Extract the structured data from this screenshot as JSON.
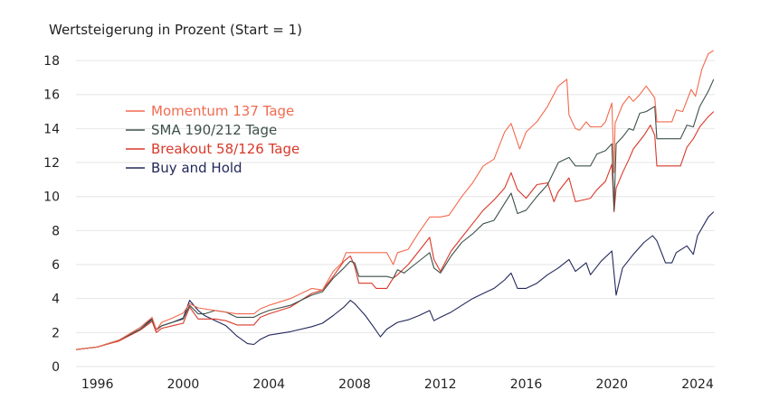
{
  "chart_data": {
    "type": "line",
    "title": "Wertsteigerung in Prozent (Start = 1)",
    "xlabel": "",
    "ylabel": "",
    "xlim": [
      1995.0,
      2024.8
    ],
    "ylim": [
      0,
      18.8
    ],
    "x_ticks": [
      1996,
      2000,
      2004,
      2008,
      2012,
      2016,
      2020,
      2024
    ],
    "x_tick_labels": [
      "1996",
      "2000",
      "2004",
      "2008",
      "2012",
      "2016",
      "2020",
      "2024"
    ],
    "y_ticks": [
      0,
      2,
      4,
      6,
      8,
      10,
      12,
      14,
      16,
      18
    ],
    "y_tick_labels": [
      "0",
      "2",
      "4",
      "6",
      "8",
      "10",
      "12",
      "14",
      "16",
      "18"
    ],
    "grid": "horizontal",
    "legend_position": "upper-left",
    "series": [
      {
        "name": "Momentum 137 Tage",
        "color": "#f26a4f",
        "points": [
          [
            1995.0,
            1.0
          ],
          [
            1996.0,
            1.15
          ],
          [
            1997.0,
            1.55
          ],
          [
            1998.0,
            2.3
          ],
          [
            1998.55,
            2.9
          ],
          [
            1998.75,
            2.15
          ],
          [
            1999.0,
            2.6
          ],
          [
            1999.5,
            2.85
          ],
          [
            2000.0,
            3.15
          ],
          [
            2000.3,
            3.7
          ],
          [
            2000.7,
            3.45
          ],
          [
            2001.5,
            3.3
          ],
          [
            2002.5,
            3.1
          ],
          [
            2003.3,
            3.1
          ],
          [
            2003.6,
            3.4
          ],
          [
            2004.0,
            3.6
          ],
          [
            2005.0,
            4.0
          ],
          [
            2006.0,
            4.6
          ],
          [
            2006.5,
            4.5
          ],
          [
            2007.0,
            5.6
          ],
          [
            2007.4,
            6.1
          ],
          [
            2007.6,
            6.7
          ],
          [
            2008.0,
            6.7
          ],
          [
            2009.5,
            6.7
          ],
          [
            2009.8,
            6.0
          ],
          [
            2010.0,
            6.7
          ],
          [
            2010.5,
            6.9
          ],
          [
            2011.0,
            7.9
          ],
          [
            2011.5,
            8.8
          ],
          [
            2012.0,
            8.8
          ],
          [
            2012.4,
            8.9
          ],
          [
            2013.0,
            10.0
          ],
          [
            2013.5,
            10.8
          ],
          [
            2014.0,
            11.8
          ],
          [
            2014.5,
            12.2
          ],
          [
            2015.0,
            13.8
          ],
          [
            2015.3,
            14.3
          ],
          [
            2015.7,
            12.8
          ],
          [
            2016.0,
            13.8
          ],
          [
            2016.5,
            14.4
          ],
          [
            2017.0,
            15.3
          ],
          [
            2017.5,
            16.5
          ],
          [
            2017.9,
            16.9
          ],
          [
            2018.0,
            14.8
          ],
          [
            2018.3,
            14.0
          ],
          [
            2018.5,
            13.9
          ],
          [
            2018.8,
            14.4
          ],
          [
            2019.0,
            14.1
          ],
          [
            2019.5,
            14.1
          ],
          [
            2019.7,
            14.4
          ],
          [
            2020.0,
            15.5
          ],
          [
            2020.1,
            11.4
          ],
          [
            2020.15,
            14.3
          ],
          [
            2020.5,
            15.4
          ],
          [
            2020.8,
            15.9
          ],
          [
            2021.0,
            15.6
          ],
          [
            2021.3,
            16.0
          ],
          [
            2021.6,
            16.5
          ],
          [
            2022.0,
            15.8
          ],
          [
            2022.1,
            14.4
          ],
          [
            2022.4,
            14.4
          ],
          [
            2022.8,
            14.4
          ],
          [
            2023.0,
            15.1
          ],
          [
            2023.3,
            15.0
          ],
          [
            2023.7,
            16.3
          ],
          [
            2023.9,
            15.9
          ],
          [
            2024.2,
            17.5
          ],
          [
            2024.5,
            18.4
          ],
          [
            2024.75,
            18.6
          ]
        ]
      },
      {
        "name": "SMA 190/212 Tage",
        "color": "#3d5149",
        "points": [
          [
            1995.0,
            1.0
          ],
          [
            1996.0,
            1.15
          ],
          [
            1997.0,
            1.55
          ],
          [
            1998.0,
            2.2
          ],
          [
            1998.55,
            2.75
          ],
          [
            1998.75,
            2.2
          ],
          [
            1999.0,
            2.4
          ],
          [
            1999.5,
            2.6
          ],
          [
            2000.0,
            2.8
          ],
          [
            2000.3,
            3.6
          ],
          [
            2000.7,
            3.1
          ],
          [
            2001.0,
            3.1
          ],
          [
            2001.5,
            3.3
          ],
          [
            2002.0,
            3.2
          ],
          [
            2002.5,
            2.9
          ],
          [
            2003.3,
            2.9
          ],
          [
            2003.6,
            3.1
          ],
          [
            2004.0,
            3.3
          ],
          [
            2005.0,
            3.6
          ],
          [
            2006.0,
            4.2
          ],
          [
            2006.5,
            4.4
          ],
          [
            2007.0,
            5.2
          ],
          [
            2007.5,
            5.8
          ],
          [
            2007.8,
            6.2
          ],
          [
            2008.0,
            6.1
          ],
          [
            2008.2,
            5.3
          ],
          [
            2009.0,
            5.3
          ],
          [
            2009.5,
            5.3
          ],
          [
            2009.8,
            5.2
          ],
          [
            2010.0,
            5.7
          ],
          [
            2010.3,
            5.5
          ],
          [
            2010.8,
            6.0
          ],
          [
            2011.2,
            6.4
          ],
          [
            2011.5,
            6.7
          ],
          [
            2011.7,
            5.8
          ],
          [
            2012.0,
            5.5
          ],
          [
            2012.5,
            6.5
          ],
          [
            2013.0,
            7.3
          ],
          [
            2013.5,
            7.8
          ],
          [
            2014.0,
            8.4
          ],
          [
            2014.5,
            8.6
          ],
          [
            2015.0,
            9.6
          ],
          [
            2015.3,
            10.2
          ],
          [
            2015.6,
            9.0
          ],
          [
            2016.0,
            9.2
          ],
          [
            2016.5,
            10.0
          ],
          [
            2017.0,
            10.7
          ],
          [
            2017.5,
            12.0
          ],
          [
            2018.0,
            12.3
          ],
          [
            2018.3,
            11.8
          ],
          [
            2019.0,
            11.8
          ],
          [
            2019.3,
            12.5
          ],
          [
            2019.7,
            12.7
          ],
          [
            2020.0,
            13.1
          ],
          [
            2020.1,
            9.2
          ],
          [
            2020.2,
            13.1
          ],
          [
            2020.5,
            13.5
          ],
          [
            2020.8,
            14.0
          ],
          [
            2021.0,
            13.9
          ],
          [
            2021.3,
            14.9
          ],
          [
            2021.6,
            15.0
          ],
          [
            2022.0,
            15.3
          ],
          [
            2022.1,
            13.4
          ],
          [
            2022.5,
            13.4
          ],
          [
            2023.0,
            13.4
          ],
          [
            2023.2,
            13.4
          ],
          [
            2023.5,
            14.2
          ],
          [
            2023.8,
            14.1
          ],
          [
            2024.1,
            15.3
          ],
          [
            2024.5,
            16.2
          ],
          [
            2024.75,
            16.9
          ]
        ]
      },
      {
        "name": "Breakout 58/126 Tage",
        "color": "#d8392a",
        "points": [
          [
            1995.0,
            1.0
          ],
          [
            1996.0,
            1.15
          ],
          [
            1997.0,
            1.5
          ],
          [
            1998.0,
            2.15
          ],
          [
            1998.55,
            2.65
          ],
          [
            1998.75,
            2.0
          ],
          [
            1999.0,
            2.25
          ],
          [
            1999.5,
            2.4
          ],
          [
            2000.0,
            2.55
          ],
          [
            2000.3,
            3.5
          ],
          [
            2000.7,
            2.8
          ],
          [
            2001.0,
            2.8
          ],
          [
            2001.5,
            2.8
          ],
          [
            2002.0,
            2.7
          ],
          [
            2002.5,
            2.45
          ],
          [
            2003.3,
            2.45
          ],
          [
            2003.6,
            2.9
          ],
          [
            2004.0,
            3.1
          ],
          [
            2005.0,
            3.5
          ],
          [
            2006.0,
            4.3
          ],
          [
            2006.5,
            4.5
          ],
          [
            2007.0,
            5.3
          ],
          [
            2007.5,
            6.2
          ],
          [
            2007.8,
            6.5
          ],
          [
            2008.0,
            5.9
          ],
          [
            2008.2,
            4.9
          ],
          [
            2008.8,
            4.9
          ],
          [
            2009.0,
            4.6
          ],
          [
            2009.5,
            4.6
          ],
          [
            2009.8,
            5.2
          ],
          [
            2010.0,
            5.4
          ],
          [
            2010.5,
            6.0
          ],
          [
            2011.0,
            6.8
          ],
          [
            2011.5,
            7.6
          ],
          [
            2011.7,
            6.3
          ],
          [
            2012.0,
            5.6
          ],
          [
            2012.5,
            6.8
          ],
          [
            2013.0,
            7.6
          ],
          [
            2013.5,
            8.4
          ],
          [
            2014.0,
            9.2
          ],
          [
            2014.5,
            9.8
          ],
          [
            2015.0,
            10.5
          ],
          [
            2015.3,
            11.4
          ],
          [
            2015.6,
            10.4
          ],
          [
            2016.0,
            9.9
          ],
          [
            2016.5,
            10.7
          ],
          [
            2017.0,
            10.8
          ],
          [
            2017.3,
            9.7
          ],
          [
            2017.5,
            10.3
          ],
          [
            2018.0,
            11.1
          ],
          [
            2018.3,
            9.7
          ],
          [
            2019.0,
            9.9
          ],
          [
            2019.3,
            10.4
          ],
          [
            2019.7,
            10.9
          ],
          [
            2020.0,
            11.9
          ],
          [
            2020.1,
            9.1
          ],
          [
            2020.2,
            10.5
          ],
          [
            2020.5,
            11.4
          ],
          [
            2020.8,
            12.2
          ],
          [
            2021.0,
            12.8
          ],
          [
            2021.5,
            13.6
          ],
          [
            2021.8,
            14.2
          ],
          [
            2022.0,
            13.6
          ],
          [
            2022.1,
            11.8
          ],
          [
            2022.5,
            11.8
          ],
          [
            2023.0,
            11.8
          ],
          [
            2023.2,
            11.8
          ],
          [
            2023.5,
            12.9
          ],
          [
            2023.8,
            13.4
          ],
          [
            2024.1,
            14.1
          ],
          [
            2024.5,
            14.7
          ],
          [
            2024.75,
            15.0
          ]
        ]
      },
      {
        "name": "Buy and Hold",
        "color": "#22285a",
        "points": [
          [
            1995.0,
            1.0
          ],
          [
            1996.0,
            1.15
          ],
          [
            1997.0,
            1.55
          ],
          [
            1998.0,
            2.3
          ],
          [
            1998.55,
            2.8
          ],
          [
            1998.75,
            2.15
          ],
          [
            1999.0,
            2.4
          ],
          [
            1999.5,
            2.6
          ],
          [
            2000.0,
            2.85
          ],
          [
            2000.3,
            3.9
          ],
          [
            2000.7,
            3.3
          ],
          [
            2001.0,
            3.0
          ],
          [
            2001.5,
            2.7
          ],
          [
            2002.0,
            2.4
          ],
          [
            2002.5,
            1.8
          ],
          [
            2003.0,
            1.35
          ],
          [
            2003.3,
            1.3
          ],
          [
            2003.6,
            1.6
          ],
          [
            2004.0,
            1.85
          ],
          [
            2005.0,
            2.05
          ],
          [
            2006.0,
            2.35
          ],
          [
            2006.5,
            2.55
          ],
          [
            2007.0,
            3.0
          ],
          [
            2007.5,
            3.5
          ],
          [
            2007.8,
            3.9
          ],
          [
            2008.0,
            3.7
          ],
          [
            2008.5,
            3.0
          ],
          [
            2008.9,
            2.3
          ],
          [
            2009.2,
            1.75
          ],
          [
            2009.5,
            2.2
          ],
          [
            2010.0,
            2.6
          ],
          [
            2010.5,
            2.75
          ],
          [
            2011.0,
            3.0
          ],
          [
            2011.5,
            3.3
          ],
          [
            2011.7,
            2.7
          ],
          [
            2012.0,
            2.9
          ],
          [
            2012.5,
            3.2
          ],
          [
            2013.0,
            3.6
          ],
          [
            2013.5,
            4.0
          ],
          [
            2014.0,
            4.3
          ],
          [
            2014.5,
            4.6
          ],
          [
            2015.0,
            5.1
          ],
          [
            2015.3,
            5.5
          ],
          [
            2015.6,
            4.6
          ],
          [
            2016.0,
            4.6
          ],
          [
            2016.5,
            4.9
          ],
          [
            2017.0,
            5.4
          ],
          [
            2017.5,
            5.8
          ],
          [
            2018.0,
            6.3
          ],
          [
            2018.3,
            5.6
          ],
          [
            2018.8,
            6.1
          ],
          [
            2019.0,
            5.4
          ],
          [
            2019.5,
            6.2
          ],
          [
            2020.0,
            6.8
          ],
          [
            2020.2,
            4.2
          ],
          [
            2020.5,
            5.8
          ],
          [
            2021.0,
            6.6
          ],
          [
            2021.5,
            7.3
          ],
          [
            2021.9,
            7.7
          ],
          [
            2022.1,
            7.4
          ],
          [
            2022.5,
            6.1
          ],
          [
            2022.8,
            6.1
          ],
          [
            2023.0,
            6.7
          ],
          [
            2023.5,
            7.1
          ],
          [
            2023.8,
            6.6
          ],
          [
            2024.0,
            7.7
          ],
          [
            2024.5,
            8.8
          ],
          [
            2024.75,
            9.1
          ]
        ]
      }
    ]
  }
}
